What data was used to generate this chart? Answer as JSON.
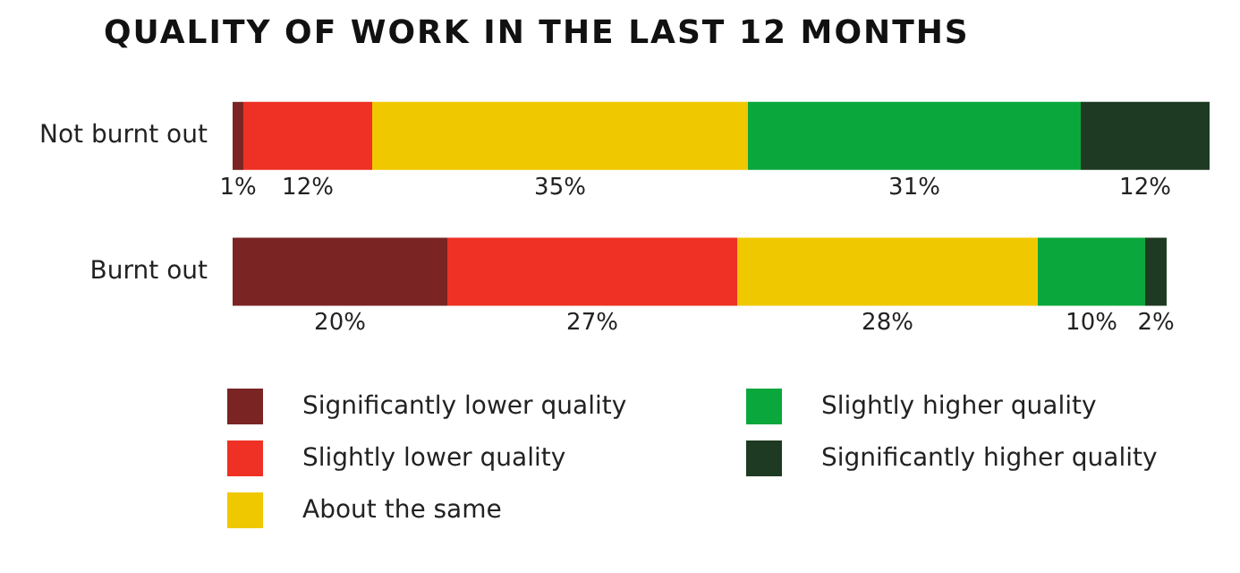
{
  "chart_data": {
    "type": "bar",
    "title": "QUALITY OF WORK IN THE LAST 12 MONTHS",
    "orientation": "horizontal",
    "stacked": true,
    "categories": [
      "Not burnt out",
      "Burnt out"
    ],
    "tick_labels": "y",
    "legend": "bottom",
    "series": [
      {
        "name": "Significantly lower quality",
        "color": "#7a2424",
        "values": [
          1,
          20
        ],
        "value_labels": [
          "1%",
          "20%"
        ]
      },
      {
        "name": "Slightly lower quality",
        "color": "#ee3124",
        "values": [
          12,
          27
        ],
        "value_labels": [
          "12%",
          "27%"
        ]
      },
      {
        "name": "About the same",
        "color": "#f0c800",
        "values": [
          35,
          28
        ],
        "value_labels": [
          "35%",
          "28%"
        ]
      },
      {
        "name": "Slightly higher quality",
        "color": "#0aa83c",
        "values": [
          31,
          10
        ],
        "value_labels": [
          "31%",
          "10%"
        ]
      },
      {
        "name": "Significantly higher quality",
        "color": "#1e3a22",
        "values": [
          12,
          2
        ],
        "value_labels": [
          "12%",
          "2%"
        ]
      }
    ]
  }
}
